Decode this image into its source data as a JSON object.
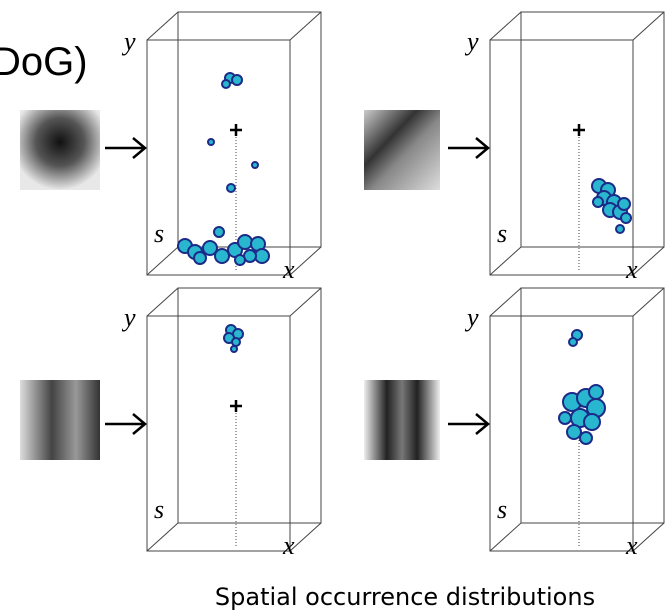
{
  "header_fragment": "DoG)",
  "panels": [
    {
      "y_label": "y",
      "s_label": "s",
      "x_label": "x"
    },
    {
      "y_label": "y",
      "s_label": "s",
      "x_label": "x"
    },
    {
      "y_label": "y",
      "s_label": "s",
      "x_label": "x"
    },
    {
      "y_label": "y",
      "s_label": "s",
      "x_label": "x"
    }
  ],
  "caption": "Spatial occurrence distributions"
}
